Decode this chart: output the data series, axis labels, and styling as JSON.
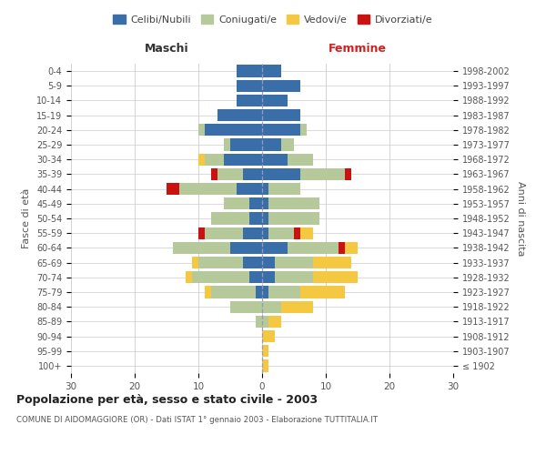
{
  "age_groups": [
    "100+",
    "95-99",
    "90-94",
    "85-89",
    "80-84",
    "75-79",
    "70-74",
    "65-69",
    "60-64",
    "55-59",
    "50-54",
    "45-49",
    "40-44",
    "35-39",
    "30-34",
    "25-29",
    "20-24",
    "15-19",
    "10-14",
    "5-9",
    "0-4"
  ],
  "birth_years": [
    "≤ 1902",
    "1903-1907",
    "1908-1912",
    "1913-1917",
    "1918-1922",
    "1923-1927",
    "1928-1932",
    "1933-1937",
    "1938-1942",
    "1943-1947",
    "1948-1952",
    "1953-1957",
    "1958-1962",
    "1963-1967",
    "1968-1972",
    "1973-1977",
    "1978-1982",
    "1983-1987",
    "1988-1992",
    "1993-1997",
    "1998-2002"
  ],
  "male": {
    "celibi": [
      0,
      0,
      0,
      0,
      0,
      1,
      2,
      3,
      5,
      3,
      2,
      2,
      4,
      3,
      6,
      5,
      9,
      7,
      4,
      4,
      4
    ],
    "coniugati": [
      0,
      0,
      0,
      1,
      5,
      7,
      9,
      7,
      9,
      6,
      6,
      4,
      9,
      4,
      3,
      1,
      1,
      0,
      0,
      0,
      0
    ],
    "vedovi": [
      0,
      0,
      0,
      0,
      0,
      1,
      1,
      1,
      0,
      0,
      0,
      0,
      0,
      0,
      1,
      0,
      0,
      0,
      0,
      0,
      0
    ],
    "divorziati": [
      0,
      0,
      0,
      0,
      0,
      0,
      0,
      0,
      0,
      1,
      0,
      0,
      2,
      1,
      0,
      0,
      0,
      0,
      0,
      0,
      0
    ]
  },
  "female": {
    "nubili": [
      0,
      0,
      0,
      0,
      0,
      1,
      2,
      2,
      4,
      1,
      1,
      1,
      1,
      6,
      4,
      3,
      6,
      6,
      4,
      6,
      3
    ],
    "coniugate": [
      0,
      0,
      0,
      1,
      3,
      5,
      6,
      6,
      8,
      4,
      8,
      8,
      5,
      7,
      4,
      2,
      1,
      0,
      0,
      0,
      0
    ],
    "vedove": [
      1,
      1,
      2,
      2,
      5,
      7,
      7,
      6,
      2,
      2,
      0,
      0,
      0,
      0,
      0,
      0,
      0,
      0,
      0,
      0,
      0
    ],
    "divorziate": [
      0,
      0,
      0,
      0,
      0,
      0,
      0,
      0,
      1,
      1,
      0,
      0,
      0,
      1,
      0,
      0,
      0,
      0,
      0,
      0,
      0
    ]
  },
  "colors": {
    "celibi_nubili": "#3a6ea8",
    "coniugati": "#b5c99a",
    "vedovi": "#f5c842",
    "divorziati": "#cc1111"
  },
  "xlim": 30,
  "title": "Popolazione per età, sesso e stato civile - 2003",
  "subtitle": "COMUNE DI AIDOMAGGIORE (OR) - Dati ISTAT 1° gennaio 2003 - Elaborazione TUTTITALIA.IT",
  "xlabel_left": "Maschi",
  "xlabel_right": "Femmine",
  "ylabel_left": "Fasce di età",
  "ylabel_right": "Anni di nascita",
  "legend_labels": [
    "Celibi/Nubili",
    "Coniugati/e",
    "Vedovi/e",
    "Divorziati/e"
  ],
  "background_color": "#ffffff",
  "grid_color": "#cccccc"
}
